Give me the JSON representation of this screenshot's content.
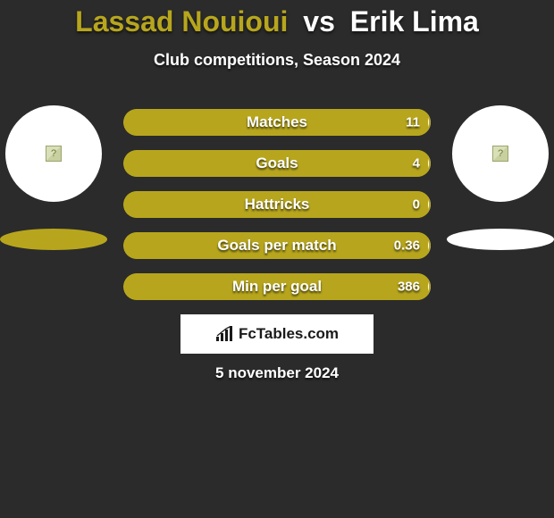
{
  "header": {
    "player1_name": "Lassad Nouioui",
    "vs_text": "vs",
    "player2_name": "Erik Lima",
    "subtitle": "Club competitions, Season 2024"
  },
  "colors": {
    "player1": "#b7a61d",
    "player2": "#ffffff",
    "background": "#2b2b2b",
    "bar_track": "#2b2b2b",
    "bar_border": "#b7a61d",
    "text": "#ffffff",
    "shadow_p1": "#b7a61d",
    "shadow_p2": "#ffffff"
  },
  "stats": [
    {
      "label": "Matches",
      "p1_value": "",
      "p2_value": "11",
      "p1_fill_pct": 99,
      "p2_fill_pct": 1
    },
    {
      "label": "Goals",
      "p1_value": "",
      "p2_value": "4",
      "p1_fill_pct": 99,
      "p2_fill_pct": 1
    },
    {
      "label": "Hattricks",
      "p1_value": "",
      "p2_value": "0",
      "p1_fill_pct": 99,
      "p2_fill_pct": 1
    },
    {
      "label": "Goals per match",
      "p1_value": "",
      "p2_value": "0.36",
      "p1_fill_pct": 99,
      "p2_fill_pct": 1
    },
    {
      "label": "Min per goal",
      "p1_value": "",
      "p2_value": "386",
      "p1_fill_pct": 99,
      "p2_fill_pct": 1
    }
  ],
  "branding": {
    "text": "FcTables.com"
  },
  "datestamp": "5 november 2024"
}
